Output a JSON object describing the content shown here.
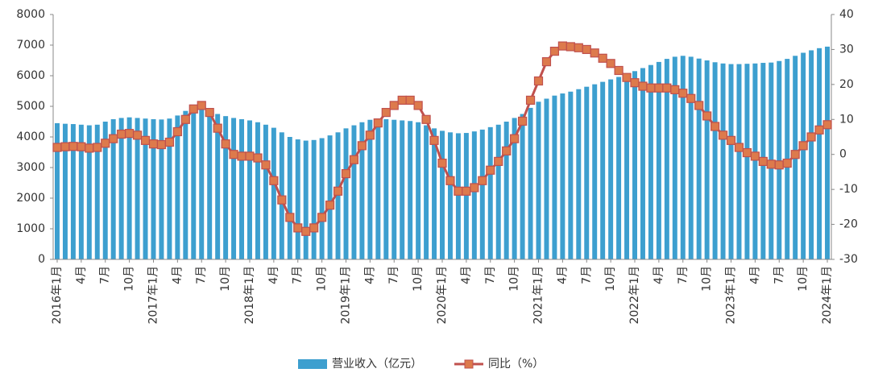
{
  "chart_data": {
    "type": "bar-line",
    "categories": [
      "2016年1月",
      null,
      null,
      "4月",
      null,
      null,
      "7月",
      null,
      null,
      "10月",
      null,
      null,
      "2017年1月",
      null,
      null,
      "4月",
      null,
      null,
      "7月",
      null,
      null,
      "10月",
      null,
      null,
      "2018年1月",
      null,
      null,
      "4月",
      null,
      null,
      "7月",
      null,
      null,
      "10月",
      null,
      null,
      "2019年1月",
      null,
      null,
      "4月",
      null,
      null,
      "7月",
      null,
      null,
      "10月",
      null,
      null,
      "2020年1月",
      null,
      null,
      "4月",
      null,
      null,
      "7月",
      null,
      null,
      "10月",
      null,
      null,
      "2021年1月",
      null,
      null,
      "4月",
      null,
      null,
      "7月",
      null,
      null,
      "10月",
      null,
      null,
      "2022年1月",
      null,
      null,
      "4月",
      null,
      null,
      "7月",
      null,
      null,
      "10月",
      null,
      null,
      "2023年1月",
      null,
      null,
      "4月",
      null,
      null,
      "7月",
      null,
      null,
      "10月",
      null,
      null,
      "2024年1月"
    ],
    "series": [
      {
        "name": "营业收入（亿元）",
        "color": "#3d9fcf",
        "type": "bar",
        "values": [
          4450,
          4430,
          4420,
          4400,
          4380,
          4400,
          4500,
          4580,
          4620,
          4640,
          4620,
          4600,
          4580,
          4570,
          4600,
          4700,
          4850,
          4950,
          4950,
          4850,
          4750,
          4680,
          4620,
          4580,
          4540,
          4480,
          4400,
          4300,
          4150,
          4000,
          3920,
          3880,
          3900,
          3960,
          4050,
          4150,
          4280,
          4380,
          4480,
          4560,
          4600,
          4580,
          4560,
          4540,
          4520,
          4480,
          4380,
          4280,
          4200,
          4150,
          4120,
          4130,
          4180,
          4240,
          4320,
          4400,
          4500,
          4620,
          4750,
          4950,
          5150,
          5250,
          5350,
          5420,
          5480,
          5560,
          5640,
          5720,
          5800,
          5880,
          5960,
          6050,
          6150,
          6250,
          6350,
          6450,
          6550,
          6620,
          6650,
          6620,
          6560,
          6500,
          6440,
          6400,
          6380,
          6380,
          6390,
          6400,
          6420,
          6430,
          6480,
          6550,
          6650,
          6750,
          6830,
          6900,
          6950
        ]
      },
      {
        "name": "同比（%）",
        "color": "#c0504d",
        "marker_color": "#dd7a4c",
        "type": "line",
        "axis": "y2",
        "values": [
          2,
          2.2,
          2.3,
          2.2,
          1.8,
          2,
          3.2,
          4.5,
          5.8,
          6,
          5.5,
          4,
          3,
          2.8,
          3.5,
          6.5,
          10,
          13,
          14,
          12,
          7.5,
          3,
          0,
          -0.5,
          -0.5,
          -1,
          -3,
          -7.5,
          -13,
          -18,
          -21,
          -22,
          -21,
          -18,
          -14.5,
          -10.5,
          -5.5,
          -1.5,
          2.5,
          5.5,
          9,
          12,
          14,
          15.5,
          15.5,
          14,
          10,
          4,
          -2.5,
          -7.5,
          -10.5,
          -10.5,
          -9.5,
          -7.5,
          -4.5,
          -2,
          1,
          4.5,
          9.5,
          15.5,
          21,
          26.5,
          29.5,
          31,
          30.8,
          30.5,
          30,
          29,
          27.5,
          26,
          24,
          22,
          20.5,
          19.5,
          19,
          19,
          19,
          18.5,
          17.5,
          16,
          14,
          11,
          8,
          5.5,
          4,
          2,
          0.5,
          -0.5,
          -2,
          -2.8,
          -3,
          -2.5,
          0,
          2.5,
          5,
          7,
          8.5
        ]
      }
    ],
    "ylim": [
      0,
      8000
    ],
    "yticks": [
      0,
      1000,
      2000,
      3000,
      4000,
      5000,
      6000,
      7000,
      8000
    ],
    "y2lim": [
      -30,
      40
    ],
    "y2ticks": [
      -30,
      -20,
      -10,
      0,
      10,
      20,
      30,
      40
    ],
    "grid": false,
    "legend": "bottom"
  }
}
